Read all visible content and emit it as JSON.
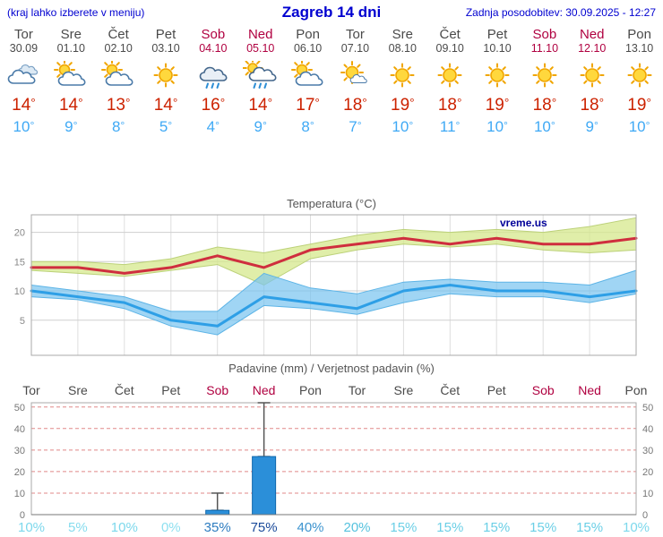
{
  "header": {
    "left_note": "(kraj lahko izberete v meniju)",
    "title": "Zagreb 14 dni",
    "updated": "Zadnja posodobitev: 30.09.2025 - 12:27"
  },
  "colors": {
    "header-blue": "#0000d0",
    "day-gray": "#4a4a4a",
    "weekend-red": "#b00040",
    "high-red": "#cc2200",
    "low-blue": "#3fa9f5",
    "chart-red-line": "#cf2e3e",
    "chart-blue-line": "#2e9fe6",
    "chart-high-band": "#d6e88c",
    "chart-low-band": "#78c3f0",
    "bar-blue": "#2b8fd9",
    "bar-border": "#1068ad",
    "watermark-navy": "#000099",
    "grid-dashed-red": "#e08888"
  },
  "days": [
    {
      "name": "Tor",
      "date": "30.09",
      "icon": "cloudy",
      "high": 14,
      "low": 10,
      "weekend": false
    },
    {
      "name": "Sre",
      "date": "01.10",
      "icon": "partly-cloudy",
      "high": 14,
      "low": 9,
      "weekend": false
    },
    {
      "name": "Čet",
      "date": "02.10",
      "icon": "partly-cloudy",
      "high": 13,
      "low": 8,
      "weekend": false
    },
    {
      "name": "Pet",
      "date": "03.10",
      "icon": "sunny",
      "high": 14,
      "low": 5,
      "weekend": false
    },
    {
      "name": "Sob",
      "date": "04.10",
      "icon": "rain",
      "high": 16,
      "low": 4,
      "weekend": true
    },
    {
      "name": "Ned",
      "date": "05.10",
      "icon": "rain-sun",
      "high": 14,
      "low": 9,
      "weekend": true
    },
    {
      "name": "Pon",
      "date": "06.10",
      "icon": "partly-cloudy",
      "high": 17,
      "low": 8,
      "weekend": false
    },
    {
      "name": "Tor",
      "date": "07.10",
      "icon": "mostly-sunny",
      "high": 18,
      "low": 7,
      "weekend": false
    },
    {
      "name": "Sre",
      "date": "08.10",
      "icon": "sunny",
      "high": 19,
      "low": 10,
      "weekend": false
    },
    {
      "name": "Čet",
      "date": "09.10",
      "icon": "sunny",
      "high": 18,
      "low": 11,
      "weekend": false
    },
    {
      "name": "Pet",
      "date": "10.10",
      "icon": "sunny",
      "high": 19,
      "low": 10,
      "weekend": false
    },
    {
      "name": "Sob",
      "date": "11.10",
      "icon": "sunny",
      "high": 18,
      "low": 10,
      "weekend": true
    },
    {
      "name": "Ned",
      "date": "12.10",
      "icon": "sunny",
      "high": 18,
      "low": 9,
      "weekend": true
    },
    {
      "name": "Pon",
      "date": "13.10",
      "icon": "sunny",
      "high": 19,
      "low": 10,
      "weekend": false
    }
  ],
  "chart_data": [
    {
      "type": "line",
      "title": "Temperatura (°C)",
      "watermark": "vreme.us",
      "ylim": [
        -1,
        23
      ],
      "yticks": [
        5,
        10,
        15,
        20
      ],
      "x_days": [
        "Tor",
        "Sre",
        "Čet",
        "Pet",
        "Sob",
        "Ned",
        "Pon",
        "Tor",
        "Sre",
        "Čet",
        "Pet",
        "Sob",
        "Ned",
        "Pon"
      ],
      "series": [
        {
          "name": "high",
          "values": [
            14,
            14,
            13,
            14,
            16,
            14,
            17,
            18,
            19,
            18,
            19,
            18,
            18,
            19
          ]
        },
        {
          "name": "high_upper",
          "values": [
            15,
            15,
            14.5,
            15.5,
            17.5,
            16.5,
            18,
            19.5,
            20.5,
            20,
            20.5,
            20,
            21,
            22.5
          ]
        },
        {
          "name": "high_lower",
          "values": [
            13.5,
            13,
            12.5,
            13.5,
            14.5,
            11,
            15.5,
            17,
            18,
            17.5,
            18,
            17,
            16.5,
            17
          ]
        },
        {
          "name": "low",
          "values": [
            10,
            9,
            8,
            5,
            4,
            9,
            8,
            7,
            10,
            11,
            10,
            10,
            9,
            10
          ]
        },
        {
          "name": "low_upper",
          "values": [
            11,
            10,
            9,
            6.5,
            6.5,
            13,
            10.5,
            9.5,
            11.5,
            12,
            11.5,
            11.5,
            11,
            13.5
          ]
        },
        {
          "name": "low_lower",
          "values": [
            9,
            8.5,
            7,
            4,
            2.5,
            7.5,
            7,
            6,
            8,
            9.5,
            9,
            9,
            8,
            9.5
          ]
        }
      ]
    },
    {
      "type": "bar",
      "title": "Padavine (mm) / Verjetnost padavin (%)",
      "categories": [
        "Tor",
        "Sre",
        "Čet",
        "Pet",
        "Sob",
        "Ned",
        "Pon",
        "Tor",
        "Sre",
        "Čet",
        "Pet",
        "Sob",
        "Ned",
        "Pon"
      ],
      "weekend_flags": [
        false,
        false,
        false,
        false,
        true,
        true,
        false,
        false,
        false,
        false,
        false,
        true,
        true,
        false
      ],
      "precip_mm": [
        0,
        0,
        0,
        0,
        2,
        27,
        0,
        0,
        0,
        0,
        0,
        0,
        0,
        0
      ],
      "precip_max_mm": [
        null,
        null,
        null,
        null,
        10,
        52,
        null,
        null,
        null,
        null,
        null,
        null,
        null,
        null
      ],
      "probability_pct": [
        10,
        5,
        10,
        0,
        35,
        75,
        40,
        20,
        15,
        15,
        15,
        15,
        15,
        10
      ],
      "probability_colors": [
        "#7dd8ec",
        "#86dcee",
        "#7dd8ec",
        "#8fe0f0",
        "#2e7dc0",
        "#1a4a9a",
        "#3d94cf",
        "#55c2de",
        "#6bcfe6",
        "#6bcfe6",
        "#6bcfe6",
        "#6bcfe6",
        "#6bcfe6",
        "#7dd8ec"
      ],
      "ylim": [
        0,
        52
      ],
      "yticks": [
        0,
        10,
        20,
        30,
        40,
        50
      ]
    }
  ]
}
